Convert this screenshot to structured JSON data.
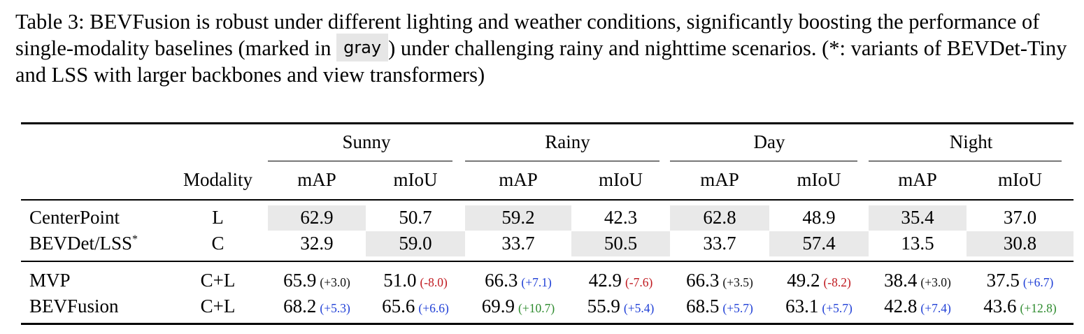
{
  "caption": {
    "part1": "Table 3: BEVFusion is robust under different lighting and weather conditions, significantly boosting the performance of single-modality baselines (marked in ",
    "gray_word": "gray",
    "part2": ") under challenging rainy and nighttime scenarios. (*: variants of BEVDet-Tiny and LSS with larger backbones and view transformers)"
  },
  "header": {
    "groups": [
      "Sunny",
      "Rainy",
      "Day",
      "Night"
    ],
    "modality_label": "Modality",
    "metric_a": "mAP",
    "metric_b": "mIoU"
  },
  "rows": [
    {
      "method": "CenterPoint",
      "modality": "L",
      "values": [
        "62.9",
        "50.7",
        "59.2",
        "42.3",
        "62.8",
        "48.9",
        "35.4",
        "37.0"
      ],
      "shaded": [
        true,
        false,
        true,
        false,
        true,
        false,
        true,
        false
      ]
    },
    {
      "method": "BEVDet/LSS",
      "method_sup": "*",
      "modality": "C",
      "values": [
        "32.9",
        "59.0",
        "33.7",
        "50.5",
        "33.7",
        "57.4",
        "13.5",
        "30.8"
      ],
      "shaded": [
        false,
        true,
        false,
        true,
        false,
        true,
        false,
        true
      ]
    },
    {
      "method": "MVP",
      "modality": "C+L",
      "values": [
        "65.9",
        "51.0",
        "66.3",
        "42.9",
        "66.3",
        "49.2",
        "38.4",
        "37.5"
      ],
      "deltas": [
        "(+3.0)",
        "(-8.0)",
        "(+7.1)",
        "(-7.6)",
        "(+3.5)",
        "(-8.2)",
        "(+3.0)",
        "(+6.7)"
      ],
      "delta_colors": [
        "black",
        "red",
        "blue",
        "red",
        "black",
        "red",
        "black",
        "blue"
      ]
    },
    {
      "method": "BEVFusion",
      "modality": "C+L",
      "values": [
        "68.2",
        "65.6",
        "69.9",
        "55.9",
        "68.5",
        "63.1",
        "42.8",
        "43.6"
      ],
      "deltas": [
        "(+5.3)",
        "(+6.6)",
        "(+10.7)",
        "(+5.4)",
        "(+5.7)",
        "(+5.7)",
        "(+7.4)",
        "(+12.8)"
      ],
      "delta_colors": [
        "blue",
        "blue",
        "green",
        "blue",
        "blue",
        "blue",
        "blue",
        "green"
      ]
    }
  ]
}
